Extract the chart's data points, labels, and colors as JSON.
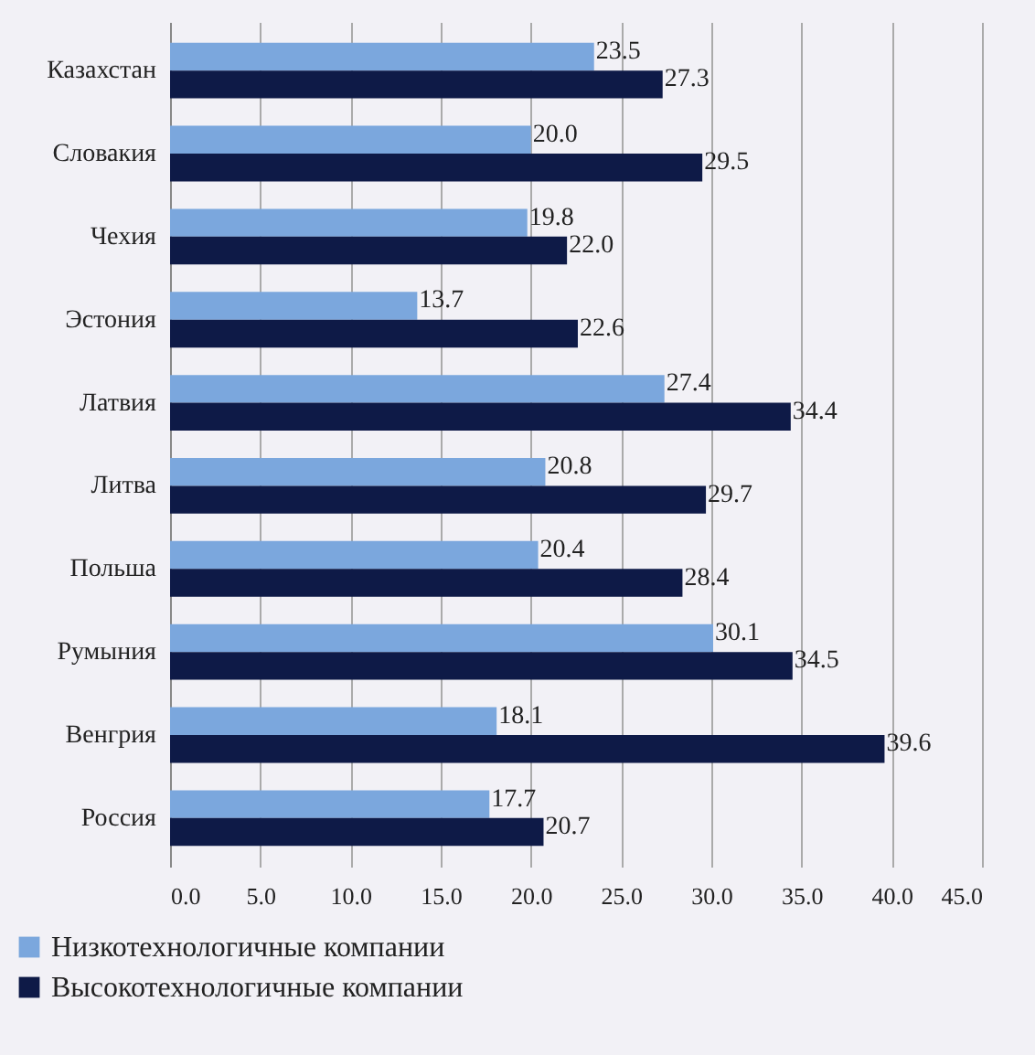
{
  "chart_data": {
    "type": "bar",
    "orientation": "horizontal",
    "categories": [
      "Казахстан",
      "Словакия",
      "Чехия",
      "Эстония",
      "Латвия",
      "Литва",
      "Польша",
      "Румыния",
      "Венгрия",
      "Россия"
    ],
    "series": [
      {
        "name": "Низкотехнологичные компании",
        "color": "#7ba7dd",
        "values": [
          23.5,
          20.0,
          19.8,
          13.7,
          27.4,
          20.8,
          20.4,
          30.1,
          18.1,
          17.7
        ],
        "value_labels": [
          "23.5",
          "20.0",
          "19.8",
          "13.7",
          "27.4",
          "20.8",
          "20.4",
          "30.1",
          "18.1",
          "17.7"
        ]
      },
      {
        "name": "Высокотехнологичные компании",
        "color": "#0e1a47",
        "values": [
          27.3,
          29.5,
          22.0,
          22.6,
          34.4,
          29.7,
          28.4,
          34.5,
          39.6,
          20.7
        ],
        "value_labels": [
          "27.3",
          "29.5",
          "22.0",
          "22.6",
          "34.4",
          "29.7",
          "28.4",
          "34.5",
          "39.6",
          "20.7"
        ]
      }
    ],
    "xlim": [
      0,
      45
    ],
    "xticks": [
      {
        "value": 0,
        "label": "0.0"
      },
      {
        "value": 5,
        "label": "5.0"
      },
      {
        "value": 10,
        "label": "10.0"
      },
      {
        "value": 15,
        "label": "15.0"
      },
      {
        "value": 20,
        "label": "20.0"
      },
      {
        "value": 25,
        "label": "25.0"
      },
      {
        "value": 30,
        "label": "30.0"
      },
      {
        "value": 35,
        "label": "35.0"
      },
      {
        "value": 40,
        "label": "40.0"
      },
      {
        "value": 45,
        "label": "45.0"
      }
    ],
    "grid": "x",
    "legend": "bottom left"
  }
}
